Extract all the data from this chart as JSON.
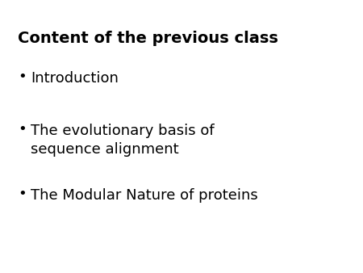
{
  "background_color": "#ffffff",
  "title": "Content of the previous class",
  "title_fontsize": 14,
  "title_fontweight": "bold",
  "title_color": "#000000",
  "bullet_items": [
    "Introduction",
    "The evolutionary basis of\nsequence alignment",
    "The Modular Nature of proteins"
  ],
  "bullet_fontsize": 13,
  "bullet_color": "#000000",
  "dot_color": "#000000",
  "fig_width": 4.5,
  "fig_height": 3.38,
  "fig_dpi": 100
}
